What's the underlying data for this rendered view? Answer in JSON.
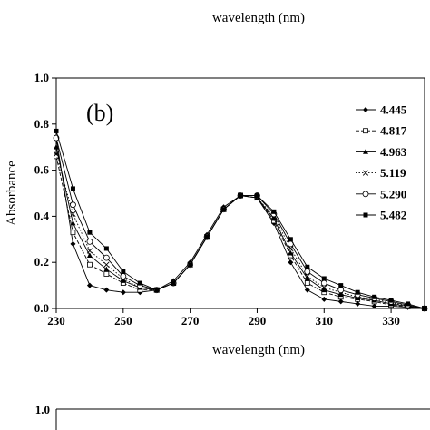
{
  "top_partial": {
    "xlabel": "wavelength (nm)"
  },
  "chart_data": {
    "type": "line",
    "panel_label": "(b)",
    "xlabel": "wavelength (nm)",
    "ylabel": "Absorbance",
    "xlim": [
      230,
      340
    ],
    "ylim": [
      0.0,
      1.0
    ],
    "xticks": [
      230,
      250,
      270,
      290,
      310,
      330
    ],
    "xtick_labels": [
      "230",
      "250",
      "270",
      "290",
      "310",
      "330"
    ],
    "yticks": [
      0.0,
      0.2,
      0.4,
      0.6,
      0.8,
      1.0
    ],
    "ytick_labels": [
      "0.0",
      "0.2",
      "0.4",
      "0.6",
      "0.8",
      "1.0"
    ],
    "grid": false,
    "legend_position": "right",
    "x": [
      230,
      235,
      240,
      245,
      250,
      255,
      260,
      265,
      270,
      275,
      280,
      285,
      290,
      295,
      300,
      305,
      310,
      315,
      320,
      325,
      330,
      335,
      340
    ],
    "series": [
      {
        "name": "4.445",
        "marker": "diamond",
        "line": "solid",
        "values": [
          0.74,
          0.28,
          0.1,
          0.08,
          0.07,
          0.07,
          0.08,
          0.12,
          0.2,
          0.32,
          0.44,
          0.49,
          0.48,
          0.37,
          0.2,
          0.08,
          0.04,
          0.03,
          0.02,
          0.01,
          0.01,
          0.005,
          0.0
        ]
      },
      {
        "name": "4.817",
        "marker": "square-open",
        "line": "dashed",
        "values": [
          0.66,
          0.33,
          0.19,
          0.15,
          0.11,
          0.08,
          0.08,
          0.11,
          0.19,
          0.31,
          0.43,
          0.49,
          0.48,
          0.38,
          0.23,
          0.11,
          0.07,
          0.05,
          0.04,
          0.03,
          0.015,
          0.008,
          0.0
        ]
      },
      {
        "name": "4.963",
        "marker": "triangle",
        "line": "solid",
        "values": [
          0.7,
          0.37,
          0.23,
          0.17,
          0.12,
          0.09,
          0.08,
          0.11,
          0.19,
          0.31,
          0.43,
          0.49,
          0.48,
          0.39,
          0.24,
          0.13,
          0.08,
          0.06,
          0.045,
          0.035,
          0.02,
          0.01,
          0.0
        ]
      },
      {
        "name": "5.119",
        "marker": "x",
        "line": "dotted",
        "values": [
          0.67,
          0.41,
          0.25,
          0.19,
          0.13,
          0.09,
          0.08,
          0.11,
          0.19,
          0.31,
          0.43,
          0.49,
          0.48,
          0.4,
          0.26,
          0.14,
          0.09,
          0.07,
          0.05,
          0.04,
          0.025,
          0.012,
          0.0
        ]
      },
      {
        "name": "5.290",
        "marker": "circle-open",
        "line": "solid",
        "values": [
          0.74,
          0.45,
          0.29,
          0.22,
          0.14,
          0.1,
          0.08,
          0.11,
          0.19,
          0.31,
          0.43,
          0.49,
          0.49,
          0.41,
          0.28,
          0.16,
          0.11,
          0.08,
          0.06,
          0.045,
          0.03,
          0.015,
          0.0
        ]
      },
      {
        "name": "5.482",
        "marker": "square",
        "line": "solid",
        "values": [
          0.77,
          0.52,
          0.33,
          0.26,
          0.16,
          0.11,
          0.08,
          0.11,
          0.19,
          0.31,
          0.43,
          0.49,
          0.49,
          0.42,
          0.3,
          0.18,
          0.13,
          0.1,
          0.07,
          0.05,
          0.035,
          0.02,
          0.0
        ]
      }
    ]
  },
  "bottom_partial": {
    "ytick_label": "1.0"
  }
}
